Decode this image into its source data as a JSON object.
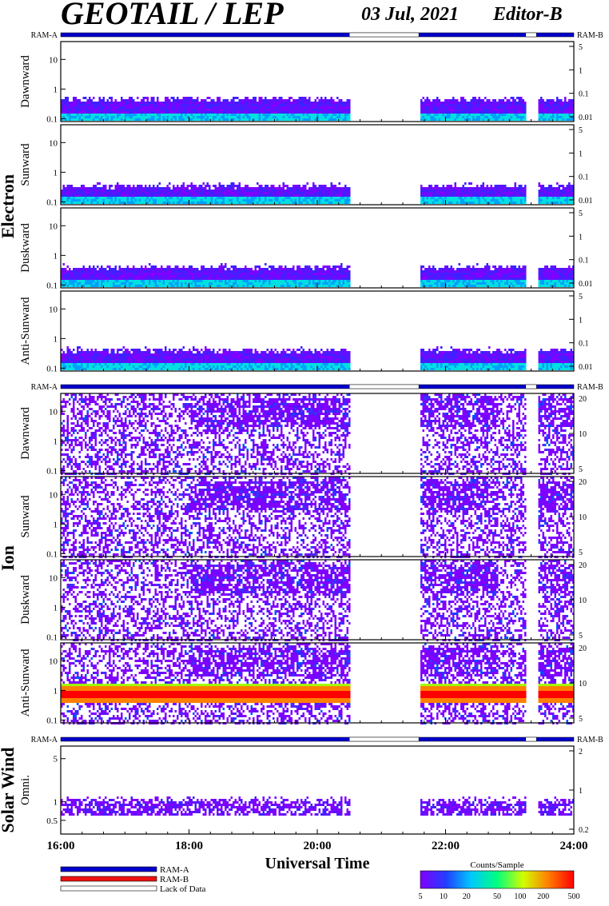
{
  "header": {
    "title": "GEOTAIL / LEP",
    "date": "03 Jul, 2021",
    "editor": "Editor-B"
  },
  "legend": {
    "ram_a": "RAM-A",
    "ram_b": "RAM-B",
    "lack": "Lack of Data",
    "colorbar_title": "Counts/Sample",
    "colorbar_ticks": [
      "5",
      "10",
      "20",
      "50",
      "100",
      "200",
      "500"
    ],
    "colors": {
      "ram_a": "#0000cc",
      "ram_b": "#ee1111",
      "lack": "#ffffff"
    }
  },
  "chart_data": [
    {
      "type": "heatmap",
      "group": "Electron",
      "xlabel": "Universal Time",
      "x_ticks": [
        "16:00",
        "18:00",
        "20:00",
        "22:00",
        "24:00"
      ],
      "xlim": [
        "16:00",
        "24:00"
      ],
      "ram_bar_label_left": "RAM-A",
      "ram_bar_label_right": "RAM-B",
      "data_gaps": [
        [
          "20:30",
          "21:35"
        ],
        [
          "23:15",
          "23:25"
        ]
      ],
      "panels": [
        {
          "ylabel": "Dawnward",
          "y_ticks_left": [
            "10",
            "1",
            "0.1"
          ],
          "y_ticks_right": [
            "5",
            "1",
            "0.1",
            "0.01"
          ],
          "ylim": [
            0.08,
            40
          ],
          "yscale": "log",
          "activity_band": [
            0.1,
            0.4
          ]
        },
        {
          "ylabel": "Sunward",
          "y_ticks_left": [
            "10",
            "1",
            "0.1"
          ],
          "y_ticks_right": [
            "5",
            "1",
            "0.1",
            "0.01"
          ],
          "ylim": [
            0.08,
            40
          ],
          "yscale": "log",
          "activity_band": [
            0.1,
            0.3
          ]
        },
        {
          "ylabel": "Duskward",
          "y_ticks_left": [
            "10",
            "1",
            "0.1"
          ],
          "y_ticks_right": [
            "5",
            "1",
            "0.1",
            "0.01"
          ],
          "ylim": [
            0.08,
            40
          ],
          "yscale": "log",
          "activity_band": [
            0.1,
            0.35
          ]
        },
        {
          "ylabel": "Anti-Sunward",
          "y_ticks_left": [
            "10",
            "1",
            "0.1"
          ],
          "y_ticks_right": [
            "5",
            "1",
            "0.1",
            "0.01"
          ],
          "ylim": [
            0.08,
            40
          ],
          "yscale": "log",
          "activity_band": [
            0.1,
            0.35
          ]
        }
      ]
    },
    {
      "type": "heatmap",
      "group": "Ion",
      "ram_bar_label_left": "RAM-A",
      "ram_bar_label_right": "RAM-B",
      "panels": [
        {
          "ylabel": "Dawnward",
          "y_ticks_left": [
            "10",
            "1",
            "0.1"
          ],
          "y_ticks_right": [
            "20",
            "10",
            "5"
          ],
          "ylim": [
            0.08,
            40
          ],
          "yscale": "log"
        },
        {
          "ylabel": "Sunward",
          "y_ticks_left": [
            "10",
            "1",
            "0.1"
          ],
          "y_ticks_right": [
            "20",
            "10",
            "5"
          ],
          "ylim": [
            0.08,
            40
          ],
          "yscale": "log"
        },
        {
          "ylabel": "Duskward",
          "y_ticks_left": [
            "10",
            "1",
            "0.1"
          ],
          "y_ticks_right": [
            "20",
            "10",
            "5"
          ],
          "ylim": [
            0.08,
            40
          ],
          "yscale": "log"
        },
        {
          "ylabel": "Anti-Sunward",
          "y_ticks_left": [
            "10",
            "1",
            "0.1"
          ],
          "y_ticks_right": [
            "20",
            "10",
            "5"
          ],
          "ylim": [
            0.08,
            40
          ],
          "yscale": "log",
          "intense_band": [
            0.4,
            2
          ]
        }
      ]
    },
    {
      "type": "heatmap",
      "group": "Solar Wind",
      "ram_bar_label_left": "RAM-A",
      "ram_bar_label_right": "RAM-B",
      "panels": [
        {
          "ylabel": "Omni.",
          "y_ticks_left": [
            "5",
            "1",
            "0.5"
          ],
          "y_ticks_right": [
            "2",
            "1",
            "0.2"
          ],
          "ylim": [
            0.3,
            8
          ],
          "yscale": "log",
          "activity_band": [
            0.6,
            1.0
          ]
        }
      ]
    }
  ]
}
